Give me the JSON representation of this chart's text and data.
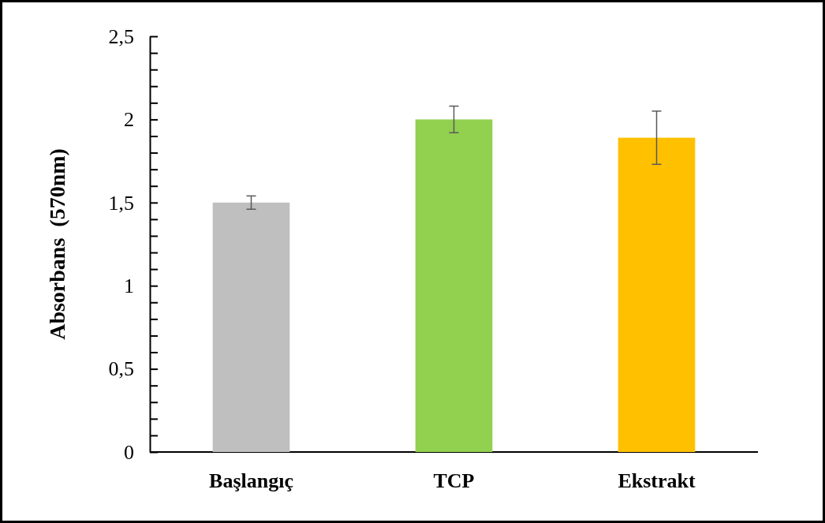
{
  "chart_data": {
    "type": "bar",
    "ylabel": "Absorbans  (570nm)",
    "categories": [
      "Başlangıç",
      "TCP",
      "Ekstrakt"
    ],
    "values": [
      1.5,
      2.0,
      1.89
    ],
    "colors": [
      "#bfbfbf",
      "#92d050",
      "#ffc000"
    ],
    "errors": [
      0.04,
      0.08,
      0.16
    ],
    "ylim": [
      0,
      2.5
    ],
    "yticks": [
      0,
      {
        "value": 0.1,
        "label": null
      },
      {
        "value": 0.2,
        "label": null
      },
      {
        "value": 0.3,
        "label": null
      },
      {
        "value": 0.4,
        "label": null
      },
      {
        "value": 0.5,
        "label": "0,5"
      },
      {
        "value": 0.6,
        "label": null
      },
      {
        "value": 0.7,
        "label": null
      },
      {
        "value": 0.8,
        "label": null
      },
      {
        "value": 0.9,
        "label": null
      },
      1,
      {
        "value": 1.1,
        "label": null
      },
      {
        "value": 1.2,
        "label": null
      },
      {
        "value": 1.3,
        "label": null
      },
      {
        "value": 1.4,
        "label": null
      },
      {
        "value": 1.5,
        "label": "1,5"
      },
      {
        "value": 1.6,
        "label": null
      },
      {
        "value": 1.7,
        "label": null
      },
      {
        "value": 1.8,
        "label": null
      },
      {
        "value": 1.9,
        "label": null
      },
      2,
      {
        "value": 2.1,
        "label": null
      },
      {
        "value": 2.2,
        "label": null
      },
      {
        "value": 2.3,
        "label": null
      },
      {
        "value": 2.4,
        "label": null
      },
      {
        "value": 2.5,
        "label": "2,5"
      }
    ]
  }
}
